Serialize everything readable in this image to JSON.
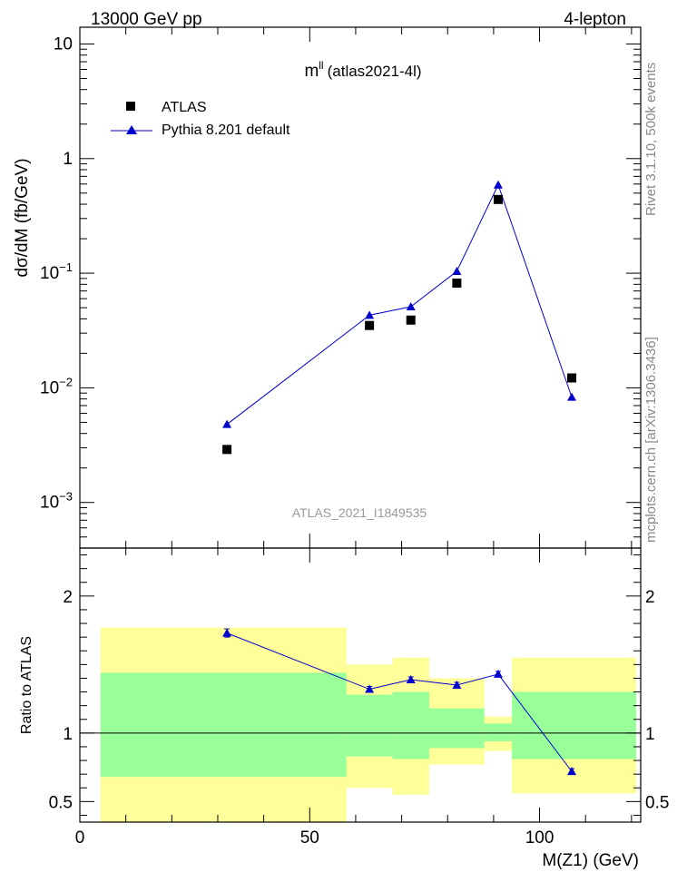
{
  "header": {
    "left": "13000 GeV pp",
    "right": "4-lepton"
  },
  "side_labels": {
    "rivet": "Rivet 3.1.10,  500k events",
    "mcplots": "mcplots.cern.ch [arXiv:1306.3436]"
  },
  "chart_data": [
    {
      "type": "scatter",
      "title": "m",
      "title_sup": "ll",
      "title_suffix": "(atlas2021-4l)",
      "ylabel": "dσ/dM (fb/GeV)",
      "yscale": "log",
      "ylim": [
        0.0004,
        14
      ],
      "xlim": [
        0,
        122
      ],
      "watermark": "ATLAS_2021_I1849535",
      "yticks": [
        {
          "value": 0.001,
          "mant": "10",
          "exp": "−3"
        },
        {
          "value": 0.01,
          "mant": "10",
          "exp": "−2"
        },
        {
          "value": 0.1,
          "mant": "10",
          "exp": "−1"
        },
        {
          "value": 1,
          "mant": "1",
          "exp": ""
        },
        {
          "value": 10,
          "mant": "10",
          "exp": ""
        }
      ],
      "legend_position": "top-left",
      "series": [
        {
          "name": "ATLAS",
          "color": "#000000",
          "marker": "square",
          "x": [
            32,
            63,
            72,
            82,
            91,
            107
          ],
          "y": [
            0.0029,
            0.035,
            0.039,
            0.082,
            0.44,
            0.0122
          ]
        },
        {
          "name": "Pythia 8.201 default",
          "color": "#0000cc",
          "marker": "triangle",
          "x": [
            32,
            63,
            72,
            82,
            91,
            107
          ],
          "y": [
            0.0048,
            0.043,
            0.051,
            0.104,
            0.59,
            0.0083
          ]
        }
      ]
    },
    {
      "type": "line",
      "ylabel": "Ratio to ATLAS",
      "xlabel": "M(Z1) (GeV)",
      "ylim": [
        0.35,
        2.35
      ],
      "xlim": [
        0,
        122
      ],
      "yticks": [
        "0.5",
        "1",
        "2"
      ],
      "yticks_values": [
        0.5,
        1,
        2
      ],
      "xticks": [
        "0",
        "50",
        "100"
      ],
      "xticks_values": [
        0,
        50,
        100
      ],
      "reference_line": 1,
      "band_colors": {
        "inner": "#99ff99",
        "outer": "#ffff99"
      },
      "bands": [
        {
          "x0": 4.5,
          "x1": 58,
          "inner": [
            0.68,
            1.44
          ],
          "outer": [
            0.35,
            1.77
          ]
        },
        {
          "x0": 58,
          "x1": 68,
          "inner": [
            0.83,
            1.28
          ],
          "outer": [
            0.6,
            1.5
          ]
        },
        {
          "x0": 68,
          "x1": 76,
          "inner": [
            0.81,
            1.3
          ],
          "outer": [
            0.55,
            1.55
          ]
        },
        {
          "x0": 76,
          "x1": 88,
          "inner": [
            0.89,
            1.18
          ],
          "outer": [
            0.77,
            1.4
          ]
        },
        {
          "x0": 88,
          "x1": 94,
          "inner": [
            0.94,
            1.07
          ],
          "outer": [
            0.87,
            1.12
          ]
        },
        {
          "x0": 94,
          "x1": 121,
          "inner": [
            0.81,
            1.3
          ],
          "outer": [
            0.56,
            1.55
          ]
        }
      ],
      "series": [
        {
          "name": "Pythia 8.201 default",
          "color": "#0000cc",
          "x": [
            32,
            63,
            72,
            82,
            91,
            107
          ],
          "y": [
            1.73,
            1.32,
            1.39,
            1.35,
            1.43,
            0.72
          ],
          "err": [
            0.03,
            0.02,
            0.02,
            0.02,
            0.02,
            0.02
          ]
        }
      ]
    }
  ]
}
